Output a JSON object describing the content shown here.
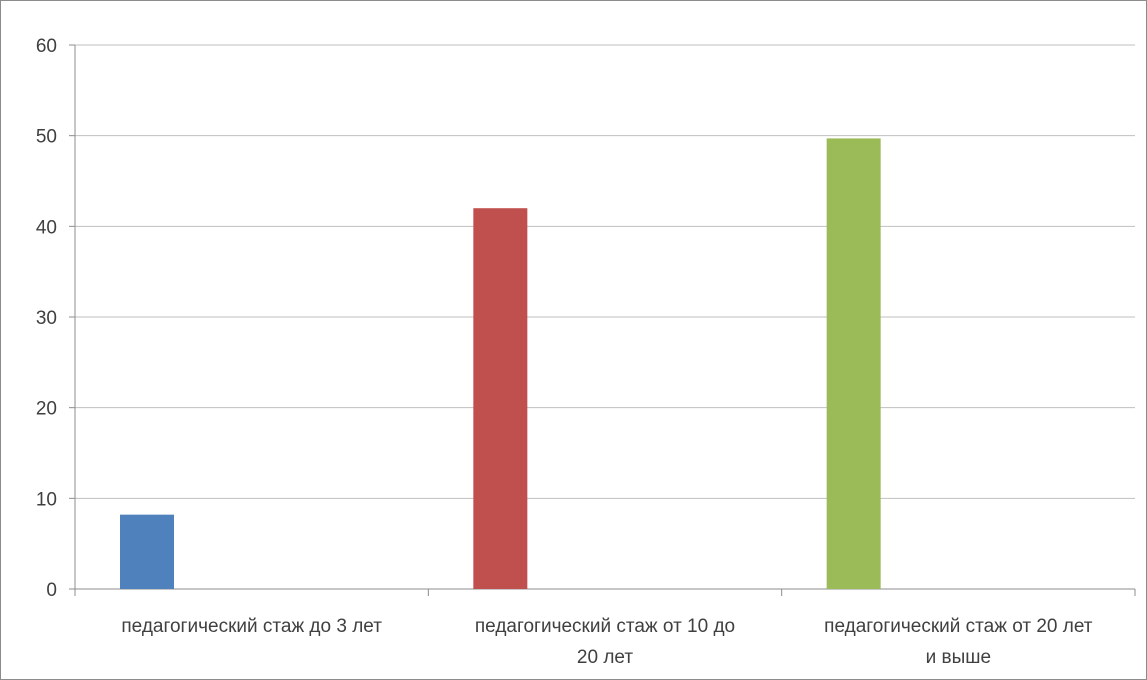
{
  "chart_data": {
    "type": "bar",
    "categories": [
      [
        "педагогический стаж до 3 лет"
      ],
      [
        "педагогический стаж от 10 до",
        "20 лет"
      ],
      [
        "педагогический стаж от 20 лет",
        "и выше"
      ]
    ],
    "values": [
      8.2,
      42.0,
      49.7
    ],
    "colors": [
      "#4f81bd",
      "#c0504d",
      "#9bbb59"
    ],
    "ylim": [
      0,
      60
    ],
    "yticks": [
      "0",
      "10",
      "20",
      "30",
      "40",
      "50",
      "60"
    ],
    "grid": true,
    "legend": false,
    "title": "",
    "xlabel": "",
    "ylabel": ""
  }
}
